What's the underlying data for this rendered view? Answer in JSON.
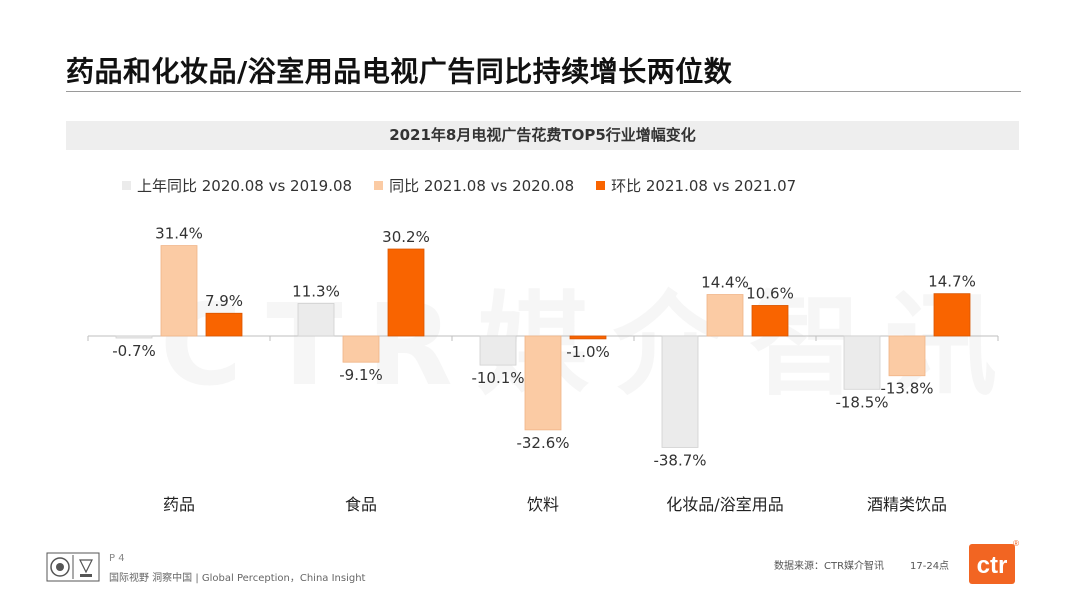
{
  "page": {
    "title": "药品和化妆品/浴室用品电视广告同比持续增长两位数",
    "watermark": "CTR媒介智讯",
    "footer": {
      "page_label": "P 4",
      "tagline": "国际视野  洞察中国 | Global Perception，China Insight",
      "source": "数据来源：CTR媒介智讯",
      "time_range": "17-24点"
    },
    "brand": {
      "logo_text": "ctr",
      "registered_mark": "®",
      "accent": "#f26522"
    }
  },
  "chart_data": {
    "type": "bar",
    "title": "2021年8月电视广告花费TOP5行业增幅变化",
    "categories": [
      "药品",
      "食品",
      "饮料",
      "化妆品/浴室用品",
      "酒精类饮品"
    ],
    "series": [
      {
        "name": "上年同比 2020.08 vs 2019.08",
        "color": "#ebebeb",
        "stroke": "#d0d0d0",
        "values": [
          -0.7,
          11.3,
          -10.1,
          -38.7,
          -18.5
        ],
        "labels": [
          "-0.7%",
          "11.3%",
          "-10.1%",
          "-38.7%",
          "-18.5%"
        ]
      },
      {
        "name": "同比 2021.08 vs 2020.08",
        "color": "#fbcba4",
        "stroke": "#f0b487",
        "values": [
          31.4,
          -9.1,
          -32.6,
          14.4,
          -13.8
        ],
        "labels": [
          "31.4%",
          "-9.1%",
          "-32.6%",
          "14.4%",
          "-13.8%"
        ]
      },
      {
        "name": "环比 2021.08 vs 2021.07",
        "color": "#f96400",
        "stroke": "#d95500",
        "values": [
          7.9,
          30.2,
          -1.0,
          10.6,
          14.7
        ],
        "labels": [
          "7.9%",
          "30.2%",
          "-1.0%",
          "10.6%",
          "14.7%"
        ]
      }
    ],
    "unit": "%",
    "ylim": [
      -40,
      35
    ],
    "grid": false,
    "legend_position": "top-left"
  }
}
